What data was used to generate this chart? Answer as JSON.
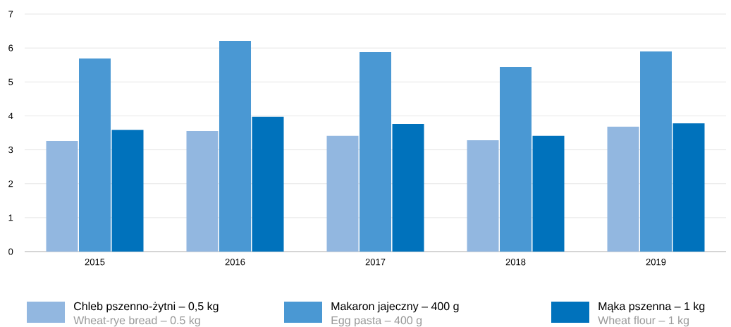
{
  "chart_data": {
    "type": "bar",
    "categories": [
      "2015",
      "2016",
      "2017",
      "2018",
      "2019"
    ],
    "series": [
      {
        "name": "Chleb pszenno-żytni – 0,5 kg",
        "color": "#92b7e0",
        "values": [
          3.26,
          3.55,
          3.41,
          3.28,
          3.68
        ]
      },
      {
        "name": "Makaron jajeczny – 400 g",
        "color": "#4a98d3",
        "values": [
          5.69,
          6.21,
          5.88,
          5.44,
          5.9
        ]
      },
      {
        "name": "Mąka pszenna – 1 kg",
        "color": "#0072bc",
        "values": [
          3.59,
          3.97,
          3.76,
          3.41,
          3.78
        ]
      }
    ],
    "annotations": [
      "Wheat-rye bread – 0.5 kg",
      "Egg pasta – 400 g",
      "Wheat flour – 1 kg"
    ],
    "ylim": [
      0,
      7
    ],
    "yticks": [
      0,
      1,
      2,
      3,
      4,
      5,
      6,
      7
    ],
    "grid": "y",
    "legend": "bottom"
  }
}
